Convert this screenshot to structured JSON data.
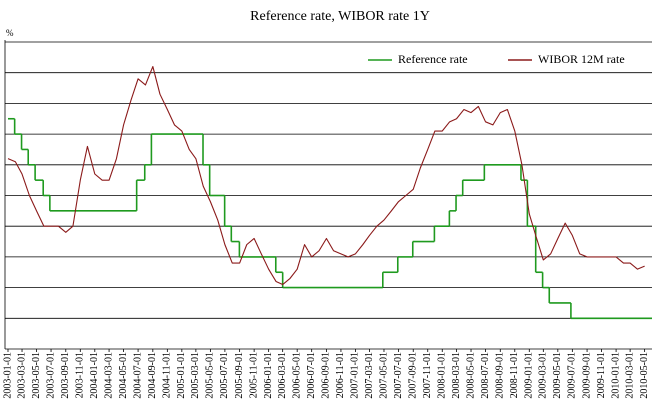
{
  "chart_data": {
    "type": "line",
    "title": "Reference rate, WIBOR rate 1Y",
    "y_label": "%",
    "xlim": [
      "2003-01-01",
      "2010-06-01"
    ],
    "ylim": [
      3,
      8
    ],
    "yticks": [
      3,
      3.5,
      4,
      4.5,
      5,
      5.5,
      6,
      6.5,
      7,
      7.5,
      8
    ],
    "grid": true,
    "legend": "top-right",
    "xticks": [
      "2003-01-01",
      "2003-03-01",
      "2003-05-01",
      "2003-07-01",
      "2003-09-01",
      "2003-11-01",
      "2004-01-01",
      "2004-03-01",
      "2004-05-01",
      "2004-07-01",
      "2004-09-01",
      "2004-11-01",
      "2005-01-01",
      "2005-03-01",
      "2005-05-01",
      "2005-07-01",
      "2005-09-01",
      "2005-11-01",
      "2006-01-01",
      "2006-03-01",
      "2006-05-01",
      "2006-07-01",
      "2006-09-01",
      "2006-11-01",
      "2007-01-01",
      "2007-03-01",
      "2007-05-01",
      "2007-07-01",
      "2007-09-01",
      "2007-11-01",
      "2008-01-01",
      "2008-03-01",
      "2008-05-01",
      "2008-07-01",
      "2008-09-01",
      "2008-11-01",
      "2009-01-01",
      "2009-03-01",
      "2009-05-01",
      "2009-07-01",
      "2009-09-01",
      "2009-11-01",
      "2010-01-01",
      "2010-03-01",
      "2010-05-01"
    ],
    "series": [
      {
        "name": "Reference rate",
        "color": "#1f9a1f",
        "step": true,
        "x": [
          "2003-01-01",
          "2003-01-29",
          "2003-02-27",
          "2003-03-27",
          "2003-04-25",
          "2003-05-29",
          "2003-06-26",
          "2004-06-25",
          "2004-07-29",
          "2004-08-26",
          "2005-03-31",
          "2005-04-28",
          "2005-06-30",
          "2005-07-28",
          "2005-08-31",
          "2006-01-31",
          "2006-03-01",
          "2007-04-26",
          "2007-06-28",
          "2007-08-30",
          "2007-11-29",
          "2008-01-31",
          "2008-02-28",
          "2008-03-27",
          "2008-06-26",
          "2008-11-27",
          "2008-12-24",
          "2009-01-28",
          "2009-02-26",
          "2009-03-26",
          "2009-06-25"
        ],
        "values": [
          6.75,
          6.5,
          6.25,
          6.0,
          5.75,
          5.5,
          5.25,
          5.75,
          6.0,
          6.5,
          6.0,
          5.5,
          5.0,
          4.75,
          4.5,
          4.25,
          4.0,
          4.25,
          4.5,
          4.75,
          5.0,
          5.25,
          5.5,
          5.75,
          6.0,
          5.75,
          5.0,
          4.25,
          4.0,
          3.75,
          3.5
        ]
      },
      {
        "name": "WIBOR 12M rate",
        "color": "#8b1a1a",
        "x": [
          "2003-01-01",
          "2003-02-01",
          "2003-03-01",
          "2003-04-01",
          "2003-05-01",
          "2003-06-01",
          "2003-07-01",
          "2003-08-01",
          "2003-09-01",
          "2003-10-01",
          "2003-11-01",
          "2003-12-01",
          "2004-01-01",
          "2004-02-01",
          "2004-03-01",
          "2004-04-01",
          "2004-05-01",
          "2004-06-01",
          "2004-07-01",
          "2004-08-01",
          "2004-09-01",
          "2004-10-01",
          "2004-11-01",
          "2004-12-01",
          "2005-01-01",
          "2005-02-01",
          "2005-03-01",
          "2005-04-01",
          "2005-05-01",
          "2005-06-01",
          "2005-07-01",
          "2005-08-01",
          "2005-09-01",
          "2005-10-01",
          "2005-11-01",
          "2005-12-01",
          "2006-01-01",
          "2006-02-01",
          "2006-03-01",
          "2006-04-01",
          "2006-05-01",
          "2006-06-01",
          "2006-07-01",
          "2006-08-01",
          "2006-09-01",
          "2006-10-01",
          "2006-11-01",
          "2006-12-01",
          "2007-01-01",
          "2007-02-01",
          "2007-03-01",
          "2007-04-01",
          "2007-05-01",
          "2007-06-01",
          "2007-07-01",
          "2007-08-01",
          "2007-09-01",
          "2007-10-01",
          "2007-11-01",
          "2007-12-01",
          "2008-01-01",
          "2008-02-01",
          "2008-03-01",
          "2008-04-01",
          "2008-05-01",
          "2008-06-01",
          "2008-07-01",
          "2008-08-01",
          "2008-09-01",
          "2008-10-01",
          "2008-11-01",
          "2008-12-01",
          "2009-01-01",
          "2009-02-01",
          "2009-03-01",
          "2009-04-01",
          "2009-05-01",
          "2009-06-01",
          "2009-07-01",
          "2009-08-01",
          "2009-09-01",
          "2009-10-01",
          "2009-11-01",
          "2009-12-01",
          "2010-01-01",
          "2010-02-01",
          "2010-03-01",
          "2010-04-01",
          "2010-05-01"
        ],
        "values": [
          6.1,
          6.05,
          5.85,
          5.5,
          5.25,
          5.0,
          5.0,
          5.0,
          4.9,
          5.0,
          5.75,
          6.3,
          5.85,
          5.75,
          5.75,
          6.1,
          6.65,
          7.05,
          7.4,
          7.3,
          7.6,
          7.15,
          6.9,
          6.65,
          6.55,
          6.25,
          6.1,
          5.65,
          5.4,
          5.1,
          4.7,
          4.4,
          4.4,
          4.7,
          4.8,
          4.55,
          4.3,
          4.1,
          4.05,
          4.15,
          4.3,
          4.7,
          4.5,
          4.6,
          4.8,
          4.6,
          4.55,
          4.5,
          4.55,
          4.7,
          4.85,
          5.0,
          5.1,
          5.25,
          5.4,
          5.5,
          5.6,
          5.95,
          6.25,
          6.55,
          6.55,
          6.7,
          6.75,
          6.9,
          6.85,
          6.95,
          6.7,
          6.65,
          6.85,
          6.9,
          6.55,
          6.0,
          5.2,
          4.8,
          4.45,
          4.55,
          4.8,
          5.05,
          4.85,
          4.55,
          4.5,
          4.5,
          4.5,
          4.5,
          4.5,
          4.4,
          4.4,
          4.3,
          4.35
        ]
      }
    ]
  }
}
